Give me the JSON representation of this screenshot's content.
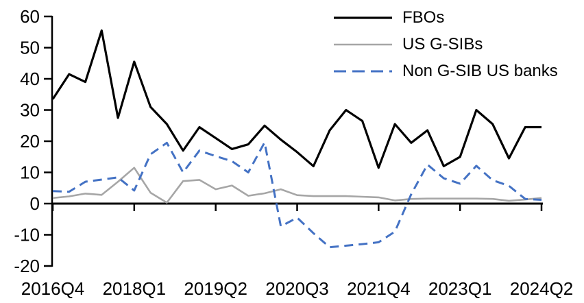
{
  "chart_data": {
    "type": "line",
    "title": "",
    "xlabel": "",
    "ylabel": "",
    "grid": false,
    "legend_position": "top-right",
    "axis_color": "#000000",
    "ylim": [
      -20,
      60
    ],
    "y_ticks": [
      60,
      50,
      40,
      30,
      20,
      10,
      0,
      -10,
      -20
    ],
    "x_tick_positions": [
      0,
      5,
      10,
      15,
      20,
      25,
      30
    ],
    "x_tick_labels": [
      "2016Q4",
      "2018Q1",
      "2019Q2",
      "2020Q3",
      "2021Q4",
      "2023Q1",
      "2024Q2"
    ],
    "categories": [
      "2016Q4",
      "2017Q1",
      "2017Q2",
      "2017Q3",
      "2017Q4",
      "2018Q1",
      "2018Q2",
      "2018Q3",
      "2018Q4",
      "2019Q1",
      "2019Q2",
      "2019Q3",
      "2019Q4",
      "2020Q1",
      "2020Q2",
      "2020Q3",
      "2020Q4",
      "2021Q1",
      "2021Q2",
      "2021Q3",
      "2021Q4",
      "2022Q1",
      "2022Q2",
      "2022Q3",
      "2022Q4",
      "2023Q1",
      "2023Q2",
      "2023Q3",
      "2023Q4",
      "2024Q1",
      "2024Q2"
    ],
    "series": [
      {
        "name": "FBOs",
        "color": "#000000",
        "style": "solid",
        "width": 3.2,
        "values": [
          33.5,
          41.5,
          39,
          55.5,
          27.5,
          45.5,
          31,
          25.5,
          17,
          24.5,
          21,
          17.5,
          19,
          25,
          20.5,
          16.5,
          12,
          23.5,
          30,
          26.5,
          11.5,
          25.5,
          19.5,
          23.5,
          12,
          15,
          30,
          25.5,
          14.5,
          24.5,
          24.5
        ]
      },
      {
        "name": "US G-SIBs",
        "color": "#A6A6A6",
        "style": "solid",
        "width": 2.6,
        "values": [
          1.8,
          2.3,
          3.2,
          2.8,
          7,
          11.5,
          3.5,
          0.3,
          7.2,
          7.6,
          4.6,
          5.8,
          2.5,
          3.3,
          4.6,
          2.7,
          2.4,
          2.4,
          2.4,
          2.2,
          2,
          1,
          1.5,
          1.6,
          1.6,
          1.6,
          1.6,
          1.5,
          0.9,
          1.3,
          1.8
        ]
      },
      {
        "name": "Non G-SIB US banks",
        "color": "#4472C4",
        "style": "dashed",
        "dash": "13 8",
        "legend_dash": "18 9",
        "width": 3,
        "values": [
          4,
          3.8,
          7,
          7.7,
          8.4,
          4.2,
          15.8,
          19.5,
          10,
          17,
          15.2,
          13.6,
          10,
          19.6,
          -7.3,
          -4.5,
          -9.5,
          -14,
          -13.5,
          -13,
          -12.4,
          -9,
          3,
          12.5,
          8.1,
          6.4,
          12.1,
          7.5,
          5.7,
          1.5,
          1.2
        ]
      }
    ]
  }
}
